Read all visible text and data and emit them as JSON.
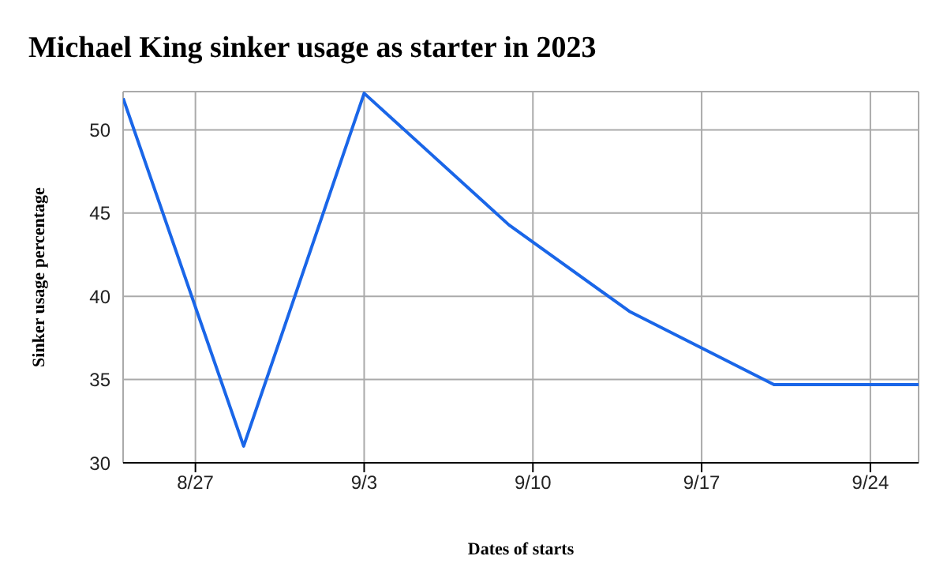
{
  "chart_data": {
    "type": "line",
    "title": "Michael King sinker usage as starter in 2023",
    "xlabel": "Dates of starts",
    "ylabel": "Sinker usage percentage",
    "x": [
      "2023-08-24",
      "2023-08-29",
      "2023-09-03",
      "2023-09-09",
      "2023-09-14",
      "2023-09-20",
      "2023-09-26"
    ],
    "series": [
      {
        "color": "#1a66e8",
        "values": [
          51.9,
          31.0,
          52.2,
          44.3,
          39.1,
          34.7,
          34.7
        ]
      }
    ],
    "xlim": [
      "2023-08-24",
      "2023-09-26"
    ],
    "xticks": [
      {
        "value": "2023-08-27",
        "label": "8/27"
      },
      {
        "value": "2023-09-03",
        "label": "9/3"
      },
      {
        "value": "2023-09-10",
        "label": "9/10"
      },
      {
        "value": "2023-09-17",
        "label": "9/17"
      },
      {
        "value": "2023-09-24",
        "label": "9/24"
      }
    ],
    "ylim": [
      30,
      52.3
    ],
    "yticks": [
      30,
      35,
      40,
      45,
      50
    ],
    "grid": true,
    "marker": "none",
    "line_style": "solid"
  }
}
